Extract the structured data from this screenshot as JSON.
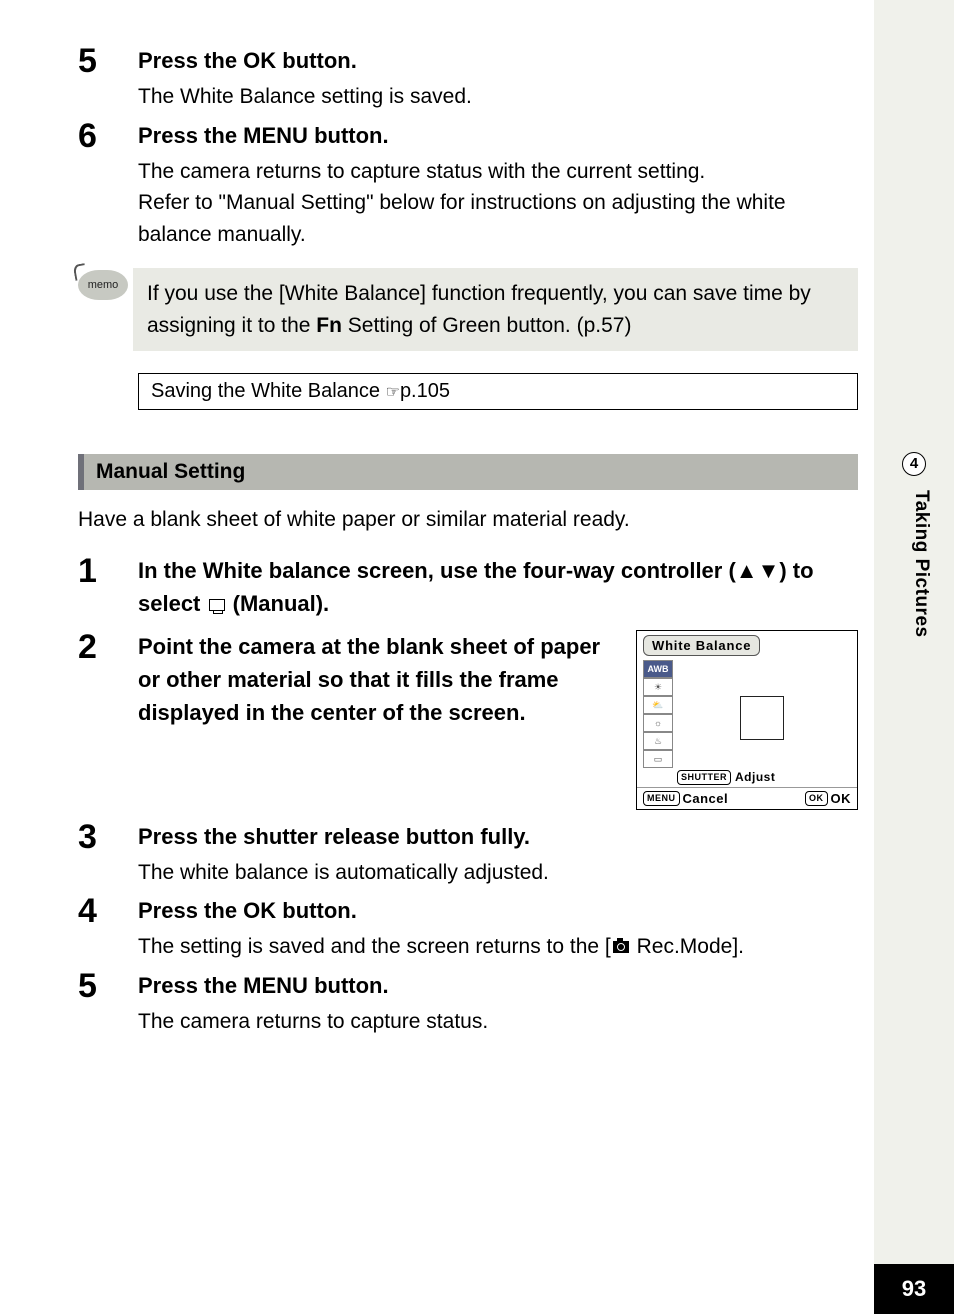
{
  "chapter": {
    "number": "4",
    "title": "Taking Pictures"
  },
  "page_number": "93",
  "steps_a": [
    {
      "num": "5",
      "heading_pre": "Press the ",
      "heading_btn": "OK",
      "heading_post": " button.",
      "body": "The White Balance setting is saved."
    },
    {
      "num": "6",
      "heading_pre": "Press the ",
      "heading_btn": "MENU",
      "heading_post": " button.",
      "body": "The camera returns to capture status with the current setting.\nRefer to \"Manual Setting\" below for instructions on adjusting the white balance manually."
    }
  ],
  "memo": {
    "label": "memo",
    "text_pre": "If you use the [White Balance] function frequently, you can save time by assigning it to the ",
    "text_btn": "Fn",
    "text_post": " Setting of Green button. (p.57)"
  },
  "reference": {
    "text": "Saving the White Balance ",
    "page": "p.105"
  },
  "section_heading": "Manual Setting",
  "section_intro": "Have a blank sheet of white paper or similar material ready.",
  "steps_b": [
    {
      "num": "1",
      "heading": "In the White balance screen, use the four-way controller (▲▼) to select ",
      "heading_post": " (Manual)."
    },
    {
      "num": "2",
      "heading": "Point the camera at the blank sheet of paper or other material so that it fills the frame displayed in the center of the screen."
    },
    {
      "num": "3",
      "heading": "Press the shutter release button fully.",
      "body": "The white balance is automatically adjusted."
    },
    {
      "num": "4",
      "heading_pre": "Press the ",
      "heading_btn": "OK",
      "heading_post": " button.",
      "body_pre": "The setting is saved and the screen returns to the [",
      "body_post": " Rec.Mode]."
    },
    {
      "num": "5",
      "heading_pre": "Press the ",
      "heading_btn": "MENU",
      "heading_post": " button.",
      "body": "The camera returns to capture status."
    }
  ],
  "lcd": {
    "title": "White Balance",
    "icons": [
      "AWB",
      "☀",
      "⛅",
      "☼",
      "♨",
      "▭"
    ],
    "selected_index": 0,
    "adjust_label": "Adjust",
    "shutter_pill": "SHUTTER",
    "cancel_label": "Cancel",
    "menu_pill": "MENU",
    "ok_pill": "OK",
    "ok_label": "OK"
  },
  "colors": {
    "sidebar_bg": "#f0f1eb",
    "memo_bg": "#e9eae4",
    "section_bg": "#b6b7b1",
    "section_border": "#6f7079",
    "pagenum_bg": "#000000",
    "pagenum_fg": "#ffffff"
  }
}
